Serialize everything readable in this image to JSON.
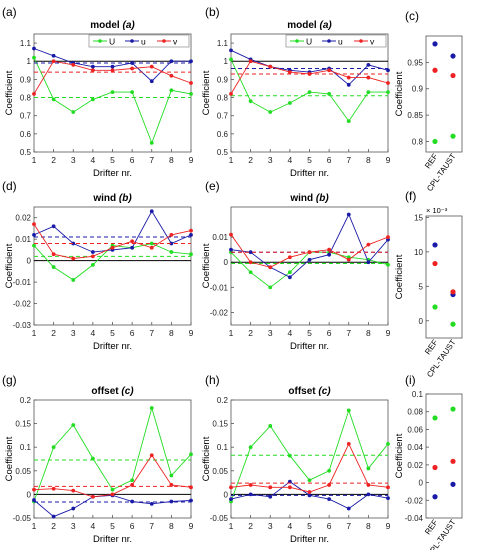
{
  "colors": {
    "U": "#22dd22",
    "u": "#1a1aa8",
    "v": "#ee2222"
  },
  "chart_data": [
    {
      "id": "a",
      "type": "line",
      "panel_label": "(a)",
      "title": "model",
      "title_symbol": "(a)",
      "xlabel": "Drifter nr.",
      "ylabel": "Coefficient",
      "x": [
        1,
        2,
        3,
        4,
        5,
        6,
        7,
        8,
        9
      ],
      "xticks": [
        "1",
        "2",
        "3",
        "4",
        "5",
        "6",
        "7",
        "8",
        "9"
      ],
      "ylim": [
        0.5,
        1.15
      ],
      "yticks": [
        0.5,
        0.6,
        0.7,
        0.8,
        0.9,
        1,
        1.1
      ],
      "ytick_labels": [
        "0.5",
        "0.6",
        "0.7",
        "0.8",
        "0.9",
        "1",
        "1.1"
      ],
      "zero_line": 1,
      "legend": {
        "position": "top-right",
        "entries": [
          "U",
          "u",
          "v"
        ]
      },
      "series": [
        {
          "name": "U",
          "key": "U",
          "values": [
            1.02,
            0.79,
            0.72,
            0.79,
            0.83,
            0.83,
            0.55,
            0.84,
            0.82
          ],
          "mean": 0.8
        },
        {
          "name": "u",
          "key": "u",
          "values": [
            1.07,
            1.03,
            0.99,
            0.97,
            0.97,
            0.99,
            0.89,
            1.0,
            1.0
          ],
          "mean": 0.99
        },
        {
          "name": "v",
          "key": "v",
          "values": [
            0.82,
            1.0,
            0.98,
            0.95,
            0.95,
            0.96,
            0.97,
            0.92,
            0.88
          ],
          "mean": 0.94
        }
      ]
    },
    {
      "id": "b",
      "type": "line",
      "panel_label": "(b)",
      "title": "model",
      "title_symbol": "(a)",
      "xlabel": "Drifter nr.",
      "ylabel": "Coefficient",
      "x": [
        1,
        2,
        3,
        4,
        5,
        6,
        7,
        8,
        9
      ],
      "xticks": [
        "1",
        "2",
        "3",
        "4",
        "5",
        "6",
        "7",
        "8",
        "9"
      ],
      "ylim": [
        0.5,
        1.15
      ],
      "yticks": [
        0.5,
        0.6,
        0.7,
        0.8,
        0.9,
        1,
        1.1
      ],
      "ytick_labels": [
        "0.5",
        "0.6",
        "0.7",
        "0.8",
        "0.9",
        "1",
        "1.1"
      ],
      "zero_line": 1,
      "legend": {
        "position": "top-right",
        "entries": [
          "U",
          "u",
          "v"
        ]
      },
      "series": [
        {
          "name": "U",
          "key": "U",
          "values": [
            1.01,
            0.78,
            0.72,
            0.77,
            0.83,
            0.82,
            0.67,
            0.83,
            0.83
          ],
          "mean": 0.81
        },
        {
          "name": "u",
          "key": "u",
          "values": [
            1.06,
            1.01,
            0.97,
            0.95,
            0.94,
            0.96,
            0.87,
            0.98,
            0.95
          ],
          "mean": 0.96
        },
        {
          "name": "v",
          "key": "v",
          "values": [
            0.82,
            1.0,
            0.97,
            0.94,
            0.93,
            0.95,
            0.91,
            0.91,
            0.88
          ],
          "mean": 0.93
        }
      ]
    },
    {
      "id": "c",
      "type": "scatter",
      "panel_label": "(c)",
      "ylabel": "Coefficient",
      "categories": [
        "REF",
        "CPL-TAUST"
      ],
      "ylim": [
        0.78,
        1.0
      ],
      "yticks": [
        0.8,
        0.85,
        0.9,
        0.95
      ],
      "ytick_labels": [
        "0.8",
        "0.85",
        "0.9",
        "0.95"
      ],
      "series": [
        {
          "key": "U",
          "values": [
            0.8,
            0.81
          ]
        },
        {
          "key": "u",
          "values": [
            0.985,
            0.962
          ]
        },
        {
          "key": "v",
          "values": [
            0.935,
            0.925
          ]
        }
      ]
    },
    {
      "id": "d",
      "type": "line",
      "panel_label": "(d)",
      "title": "wind",
      "title_symbol": "(b)",
      "xlabel": "Drifter nr.",
      "ylabel": "Coefficient",
      "x": [
        1,
        2,
        3,
        4,
        5,
        6,
        7,
        8,
        9
      ],
      "xticks": [
        "1",
        "2",
        "3",
        "4",
        "5",
        "6",
        "7",
        "8",
        "9"
      ],
      "ylim": [
        -0.03,
        0.025
      ],
      "yticks": [
        -0.03,
        -0.02,
        -0.01,
        0,
        0.01,
        0.02
      ],
      "ytick_labels": [
        "-0.03",
        "-0.02",
        "-0.01",
        "0",
        "0.01",
        "0.02"
      ],
      "zero_line": 0,
      "series": [
        {
          "name": "U",
          "key": "U",
          "values": [
            0.007,
            -0.003,
            -0.009,
            -0.002,
            0.007,
            0.006,
            0.008,
            0.004,
            0.003
          ],
          "mean": 0.002
        },
        {
          "name": "u",
          "key": "u",
          "values": [
            0.012,
            0.016,
            0.008,
            0.004,
            0.005,
            0.006,
            0.023,
            0.008,
            0.012
          ],
          "mean": 0.011
        },
        {
          "name": "v",
          "key": "v",
          "values": [
            0.017,
            0.003,
            0.001,
            0.002,
            0.006,
            0.009,
            0.006,
            0.012,
            0.014
          ],
          "mean": 0.008
        }
      ]
    },
    {
      "id": "e",
      "type": "line",
      "panel_label": "(e)",
      "title": "wind",
      "title_symbol": "(b)",
      "xlabel": "Drifter nr.",
      "ylabel": "Coefficient",
      "x": [
        1,
        2,
        3,
        4,
        5,
        6,
        7,
        8,
        9
      ],
      "xticks": [
        "1",
        "2",
        "3",
        "4",
        "5",
        "6",
        "7",
        "8",
        "9"
      ],
      "ylim": [
        -0.025,
        0.022
      ],
      "yticks": [
        -0.02,
        -0.01,
        0,
        0.01
      ],
      "ytick_labels": [
        "-0.02",
        "-0.01",
        "0",
        "0.01"
      ],
      "zero_line": 0,
      "series": [
        {
          "name": "U",
          "key": "U",
          "values": [
            0.004,
            -0.004,
            -0.01,
            -0.004,
            0.004,
            0.004,
            0.002,
            0.001,
            -0.001
          ],
          "mean": -0.0005
        },
        {
          "name": "u",
          "key": "u",
          "values": [
            0.005,
            0.004,
            -0.002,
            -0.006,
            0.001,
            0.003,
            0.019,
            0.0,
            0.009
          ],
          "mean": 0.004
        },
        {
          "name": "v",
          "key": "v",
          "values": [
            0.011,
            0.0,
            -0.002,
            0.002,
            0.004,
            0.005,
            0.001,
            0.007,
            0.01
          ],
          "mean": 0.004
        }
      ]
    },
    {
      "id": "f",
      "type": "scatter",
      "panel_label": "(f)",
      "ylabel": "Coefficient",
      "exponent_label": "× 10⁻³",
      "categories": [
        "REF",
        "CPL-TAUST"
      ],
      "ylim": [
        -0.0025,
        0.0152
      ],
      "yticks": [
        0,
        0.005,
        0.01,
        0.015
      ],
      "ytick_labels": [
        "0",
        "5",
        "10",
        "15"
      ],
      "series": [
        {
          "key": "U",
          "values": [
            0.002,
            -0.0005
          ]
        },
        {
          "key": "u",
          "values": [
            0.011,
            0.0038
          ]
        },
        {
          "key": "v",
          "values": [
            0.0083,
            0.0042
          ]
        }
      ]
    },
    {
      "id": "g",
      "type": "line",
      "panel_label": "(g)",
      "title": "offset",
      "title_symbol": "(c)",
      "xlabel": "Drifter nr.",
      "ylabel": "Coefficient",
      "x": [
        1,
        2,
        3,
        4,
        5,
        6,
        7,
        8,
        9
      ],
      "xticks": [
        "1",
        "2",
        "3",
        "4",
        "5",
        "6",
        "7",
        "8",
        "9"
      ],
      "ylim": [
        -0.05,
        0.2
      ],
      "yticks": [
        -0.05,
        0,
        0.05,
        0.1,
        0.15,
        0.2
      ],
      "ytick_labels": [
        "-0.05",
        "0",
        "0.05",
        "0.1",
        "0.15",
        "0.2"
      ],
      "zero_line": 0,
      "series": [
        {
          "name": "U",
          "key": "U",
          "values": [
            -0.015,
            0.1,
            0.147,
            0.076,
            0.01,
            0.03,
            0.183,
            0.04,
            0.085
          ],
          "mean": 0.073
        },
        {
          "name": "u",
          "key": "u",
          "values": [
            -0.012,
            -0.047,
            -0.03,
            -0.005,
            -0.002,
            -0.015,
            -0.02,
            -0.015,
            -0.013
          ],
          "mean": -0.016
        },
        {
          "name": "v",
          "key": "v",
          "values": [
            0.01,
            0.012,
            0.008,
            -0.005,
            0.0,
            0.02,
            0.083,
            0.02,
            0.015
          ],
          "mean": 0.017
        }
      ]
    },
    {
      "id": "h",
      "type": "line",
      "panel_label": "(h)",
      "title": "offset",
      "title_symbol": "(c)",
      "xlabel": "Drifter nr.",
      "ylabel": "Coefficient",
      "x": [
        1,
        2,
        3,
        4,
        5,
        6,
        7,
        8,
        9
      ],
      "xticks": [
        "1",
        "2",
        "3",
        "4",
        "5",
        "6",
        "7",
        "8",
        "9"
      ],
      "ylim": [
        -0.05,
        0.2
      ],
      "yticks": [
        -0.05,
        0,
        0.05,
        0.1,
        0.15,
        0.2
      ],
      "ytick_labels": [
        "-0.05",
        "0",
        "0.05",
        "0.1",
        "0.15",
        "0.2"
      ],
      "zero_line": 0,
      "series": [
        {
          "name": "U",
          "key": "U",
          "values": [
            -0.015,
            0.1,
            0.145,
            0.082,
            0.03,
            0.05,
            0.178,
            0.055,
            0.107
          ],
          "mean": 0.083
        },
        {
          "name": "u",
          "key": "u",
          "values": [
            -0.01,
            0.0,
            -0.005,
            0.027,
            -0.002,
            -0.01,
            -0.03,
            0.0,
            -0.008
          ],
          "mean": -0.002
        },
        {
          "name": "v",
          "key": "v",
          "values": [
            0.015,
            0.02,
            0.015,
            0.015,
            0.005,
            0.02,
            0.107,
            0.02,
            0.015
          ],
          "mean": 0.024
        }
      ]
    },
    {
      "id": "i",
      "type": "scatter",
      "panel_label": "(i)",
      "ylabel": "Coefficient",
      "categories": [
        "REF",
        "CPL-TAUST"
      ],
      "ylim": [
        -0.04,
        0.1
      ],
      "yticks": [
        -0.04,
        -0.02,
        0,
        0.02,
        0.04,
        0.06,
        0.08,
        0.1
      ],
      "ytick_labels": [
        "-0.04",
        "-0.02",
        "0",
        "0.02",
        "0.04",
        "0.06",
        "0.08",
        "0.1"
      ],
      "series": [
        {
          "key": "U",
          "values": [
            0.073,
            0.083
          ]
        },
        {
          "key": "u",
          "values": [
            -0.016,
            -0.002
          ]
        },
        {
          "key": "v",
          "values": [
            0.017,
            0.024
          ]
        }
      ]
    }
  ]
}
